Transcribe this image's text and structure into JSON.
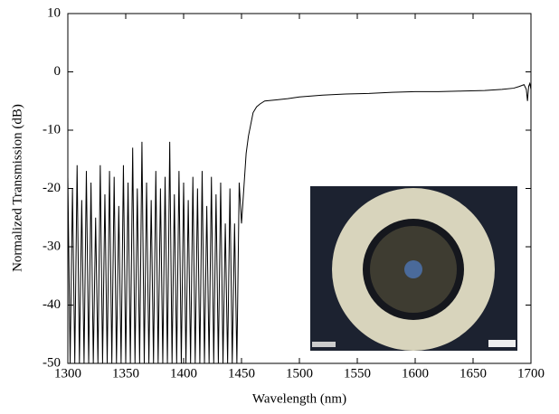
{
  "chart_data": {
    "type": "line",
    "xlabel": "Wavelength (nm)",
    "ylabel": "Normalized Transmission (dB)",
    "xlim": [
      1300,
      1700
    ],
    "xticks": [
      1300,
      1350,
      1400,
      1450,
      1500,
      1550,
      1600,
      1650,
      1700
    ],
    "ylim": [
      -50,
      10
    ],
    "yticks": [
      -50,
      -40,
      -30,
      -20,
      -10,
      0,
      10
    ],
    "series": [
      {
        "color": "#000000",
        "x": [
          1300,
          1302,
          1304,
          1306,
          1308,
          1310,
          1312,
          1314,
          1316,
          1318,
          1320,
          1322,
          1324,
          1326,
          1328,
          1330,
          1332,
          1334,
          1336,
          1338,
          1340,
          1342,
          1344,
          1346,
          1348,
          1350,
          1352,
          1354,
          1356,
          1358,
          1360,
          1362,
          1364,
          1366,
          1368,
          1370,
          1372,
          1374,
          1376,
          1378,
          1380,
          1382,
          1384,
          1386,
          1388,
          1390,
          1392,
          1394,
          1396,
          1398,
          1400,
          1402,
          1404,
          1406,
          1408,
          1410,
          1412,
          1414,
          1416,
          1418,
          1420,
          1422,
          1424,
          1426,
          1428,
          1430,
          1432,
          1434,
          1436,
          1438,
          1440,
          1442,
          1444,
          1446,
          1448,
          1450,
          1452,
          1454,
          1456,
          1458,
          1460,
          1463,
          1466,
          1470,
          1480,
          1490,
          1500,
          1520,
          1540,
          1560,
          1580,
          1600,
          1620,
          1640,
          1660,
          1675,
          1685,
          1690,
          1694,
          1696,
          1697,
          1698,
          1699,
          1700
        ],
        "values": [
          -18,
          -50,
          -20,
          -50,
          -16,
          -50,
          -22,
          -50,
          -17,
          -50,
          -19,
          -50,
          -25,
          -50,
          -16,
          -50,
          -21,
          -50,
          -17,
          -50,
          -18,
          -50,
          -23,
          -50,
          -16,
          -50,
          -19,
          -50,
          -13,
          -50,
          -20,
          -50,
          -12,
          -50,
          -19,
          -50,
          -22,
          -50,
          -17,
          -50,
          -20,
          -50,
          -18,
          -50,
          -12,
          -50,
          -21,
          -50,
          -17,
          -50,
          -19,
          -50,
          -22,
          -50,
          -18,
          -50,
          -20,
          -50,
          -17,
          -50,
          -23,
          -50,
          -18,
          -50,
          -21,
          -50,
          -19,
          -50,
          -26,
          -50,
          -20,
          -50,
          -26,
          -50,
          -19,
          -26,
          -20,
          -14,
          -11,
          -9,
          -7,
          -6,
          -5.5,
          -5,
          -4.8,
          -4.6,
          -4.3,
          -4,
          -3.8,
          -3.7,
          -3.5,
          -3.4,
          -3.4,
          -3.3,
          -3.2,
          -3,
          -2.8,
          -2.5,
          -2.2,
          -3,
          -5,
          -2.5,
          -2,
          -3
        ]
      }
    ]
  }
}
